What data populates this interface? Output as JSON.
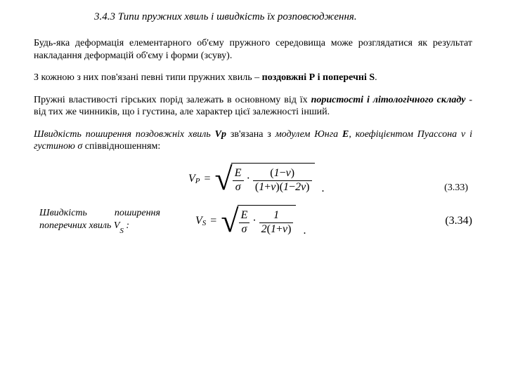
{
  "title": "3.4.3 Типи пружних хвиль і швидкість їх розповсюдження.",
  "p1": {
    "a": "Будь-яка деформація елементарного об'єму пружного середовища може розглядатися як результат накладання деформацій об'єму і форми (зсуву)."
  },
  "p2": {
    "a": "З кожною з них пов'язані певні типи пружних хвиль – ",
    "b": "поздовжні Р і поперечні S",
    "c": "."
  },
  "p3": {
    "a": "Пружні властивості гірських порід залежать в основному від їх ",
    "b": "пористості і літологічного складу",
    "c": " - від тих же чинників, що і густина, але характер цієї залежності інший."
  },
  "p4": {
    "a": "Швидкість поширення поздовжніх хвиль ",
    "b": "Vp",
    "c": " зв'язана з ",
    "d": "модулем Юнга ",
    "e": "E",
    "f": ", коефіцієнтом Пуассона ν і густиною σ ",
    "g": "співвідношенням:"
  },
  "vs_label": {
    "a": "Швидкість поширення поперечних хвиль V",
    "sub": "S",
    "b": " :"
  },
  "eq": {
    "V": "V",
    "P": "P",
    "S": "S",
    "E": "E",
    "sigma": "σ",
    "one": "1",
    "two": "2",
    "nu": "ν",
    "minus": "−",
    "plus": "+",
    "lp": "(",
    "rp": ")",
    "n33": "(3.33)",
    "n34": "(3.34)"
  }
}
